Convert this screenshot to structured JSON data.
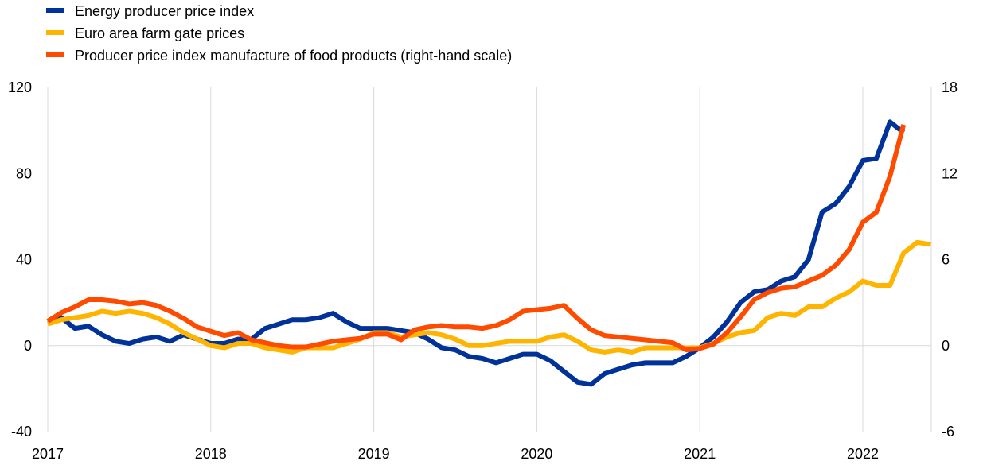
{
  "chart_data": {
    "type": "line",
    "title": "",
    "xlabel": "",
    "ylabel": "",
    "x_tick_labels": [
      "2017",
      "2018",
      "2019",
      "2020",
      "2021",
      "2022"
    ],
    "x_range": [
      2017.0,
      2022.42
    ],
    "y_left": {
      "range": [
        -40,
        120
      ],
      "ticks": [
        "-40",
        "0",
        "40",
        "80",
        "120"
      ]
    },
    "y_right": {
      "range": [
        -6,
        18
      ],
      "ticks": [
        "-6",
        "0",
        "6",
        "12",
        "18"
      ]
    },
    "grid": "vertical",
    "legend_position": "top-left",
    "series": [
      {
        "name": "Energy producer price index",
        "color": "#003299",
        "axis": "left",
        "x_start": 2017.0,
        "step_months": 1,
        "values": [
          11,
          13,
          8,
          9,
          5,
          2,
          1,
          3,
          4,
          2,
          5,
          3,
          1,
          1,
          3,
          3,
          8,
          10,
          12,
          12,
          13,
          15,
          11,
          8,
          8,
          8,
          7,
          6,
          3,
          -1,
          -2,
          -5,
          -6,
          -8,
          -6,
          -4,
          -4,
          -7,
          -12,
          -17,
          -18,
          -13,
          -11,
          -9,
          -8,
          -8,
          -8,
          -5,
          -1,
          4,
          11,
          20,
          25,
          26,
          30,
          32,
          40,
          62,
          66,
          74,
          86,
          87,
          104,
          99
        ]
      },
      {
        "name": "Euro area farm gate prices",
        "color": "#FFB400",
        "axis": "left",
        "x_start": 2017.0,
        "step_months": 1,
        "values": [
          10,
          12,
          13,
          14,
          16,
          15,
          16,
          15,
          13,
          10,
          6,
          3,
          0,
          -1,
          1,
          1,
          -1,
          -2,
          -3,
          -1,
          -1,
          -1,
          1,
          3,
          6,
          6,
          4,
          5,
          6,
          5,
          3,
          0,
          0,
          1,
          2,
          2,
          2,
          4,
          5,
          2,
          -2,
          -3,
          -2,
          -3,
          -1,
          -1,
          -1,
          -1,
          -1,
          1,
          4,
          6,
          7,
          13,
          15,
          14,
          18,
          18,
          22,
          25,
          30,
          28,
          28,
          43,
          48,
          47
        ]
      },
      {
        "name": "Producer price index manufacture of food products (right-hand scale)",
        "color": "#FF4B00",
        "axis": "right",
        "x_start": 2017.0,
        "step_months": 1,
        "values": [
          1.7,
          2.3,
          2.7,
          3.2,
          3.2,
          3.1,
          2.9,
          3.0,
          2.8,
          2.4,
          1.9,
          1.3,
          1.0,
          0.7,
          0.9,
          0.4,
          0.2,
          0.0,
          -0.1,
          -0.1,
          0.1,
          0.3,
          0.4,
          0.5,
          0.8,
          0.8,
          0.4,
          1.1,
          1.3,
          1.4,
          1.3,
          1.3,
          1.2,
          1.4,
          1.8,
          2.4,
          2.5,
          2.6,
          2.8,
          1.9,
          1.1,
          0.7,
          0.6,
          0.5,
          0.4,
          0.3,
          0.2,
          -0.3,
          -0.2,
          0.1,
          0.9,
          2.0,
          3.2,
          3.7,
          4.0,
          4.1,
          4.5,
          4.9,
          5.6,
          6.7,
          8.6,
          9.3,
          11.8,
          15.4
        ]
      }
    ]
  }
}
